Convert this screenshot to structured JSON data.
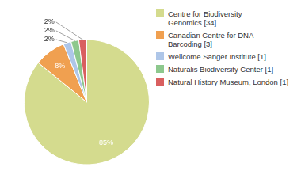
{
  "chart_data": {
    "type": "pie",
    "categories": [
      "Centre for Biodiversity\nGenomics [34]",
      "Canadian Centre for DNA\nBarcoding [3]",
      "Wellcome Sanger Institute [1]",
      "Naturalis Biodiversity Center [1]",
      "Natural History Museum, London [1]"
    ],
    "values": [
      85,
      8,
      2,
      2,
      2
    ],
    "value_labels": [
      "85%",
      "8%",
      "2%",
      "2%",
      "2%"
    ],
    "colors": [
      "#d4db8e",
      "#f0a050",
      "#aec6e8",
      "#8dc88d",
      "#d95f5f"
    ],
    "data_labels": true,
    "legend": "right"
  }
}
